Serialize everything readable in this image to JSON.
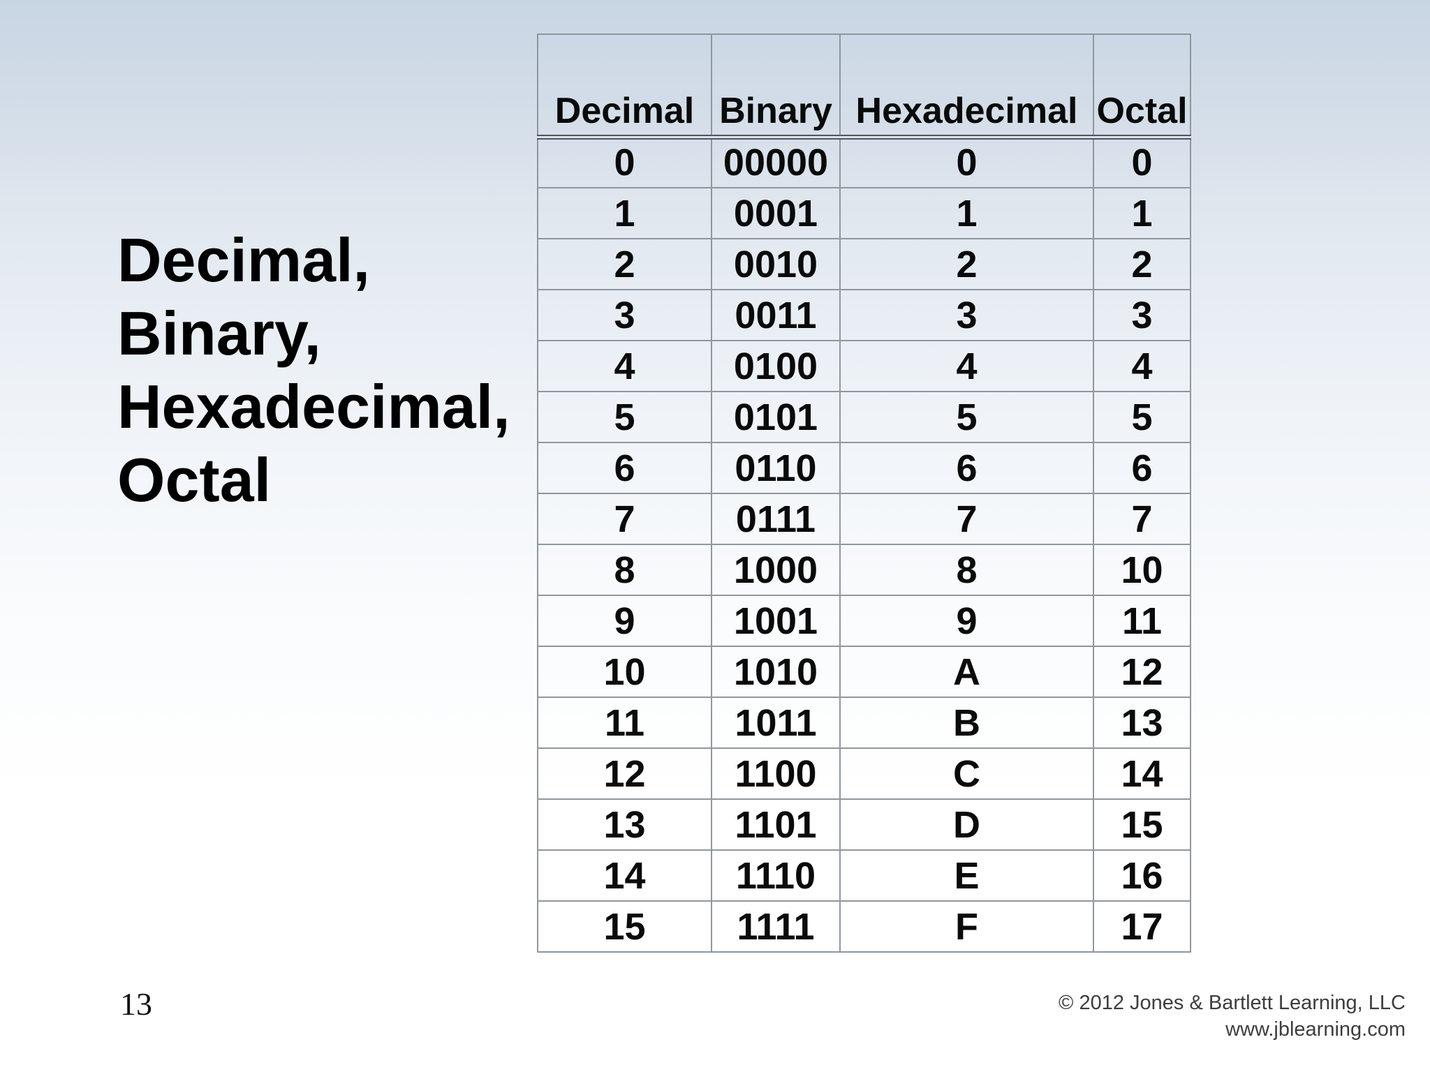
{
  "title": {
    "lines": [
      "Decimal,",
      "Binary,",
      "Hexadecimal,",
      "Octal"
    ]
  },
  "table": {
    "headers": [
      "Decimal",
      "Binary",
      "Hexadecimal",
      "Octal"
    ],
    "rows": [
      [
        "0",
        "00000",
        "0",
        "0"
      ],
      [
        "1",
        "0001",
        "1",
        "1"
      ],
      [
        "2",
        "0010",
        "2",
        "2"
      ],
      [
        "3",
        "0011",
        "3",
        "3"
      ],
      [
        "4",
        "0100",
        "4",
        "4"
      ],
      [
        "5",
        "0101",
        "5",
        "5"
      ],
      [
        "6",
        "0110",
        "6",
        "6"
      ],
      [
        "7",
        "0111",
        "7",
        "7"
      ],
      [
        "8",
        "1000",
        "8",
        "10"
      ],
      [
        "9",
        "1001",
        "9",
        "11"
      ],
      [
        "10",
        "1010",
        "A",
        "12"
      ],
      [
        "11",
        "1011",
        "B",
        "13"
      ],
      [
        "12",
        "1100",
        "C",
        "14"
      ],
      [
        "13",
        "1101",
        "D",
        "15"
      ],
      [
        "14",
        "1110",
        "E",
        "16"
      ],
      [
        "15",
        "1111",
        "F",
        "17"
      ]
    ]
  },
  "footer": {
    "page_number": "13",
    "copyright_line1": "© 2012 Jones & Bartlett Learning, LLC",
    "copyright_line2": "www.jblearning.com"
  },
  "colors": {
    "background_top": "#c8d5e3",
    "background_bottom": "#ffffff",
    "table_border": "#8f979e",
    "header_underline": "#4f565c",
    "text": "#000000",
    "footer_text": "#3d3d3d"
  }
}
